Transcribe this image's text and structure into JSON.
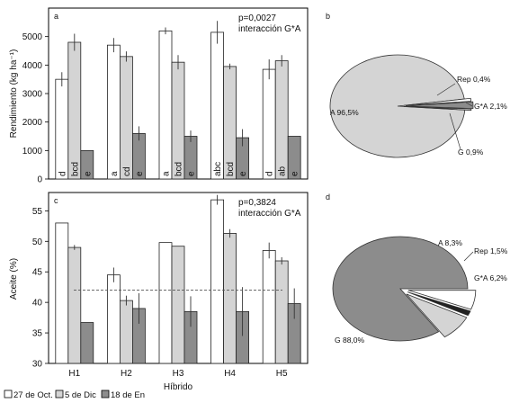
{
  "legend": {
    "items": [
      {
        "label": "27 de Oct.",
        "color": "#ffffff"
      },
      {
        "label": "5 de Dic",
        "color": "#d4d4d4"
      },
      {
        "label": "18 de En",
        "color": "#8c8c8c"
      }
    ]
  },
  "chart_data": [
    {
      "panel": "a",
      "type": "bar",
      "categories": [
        "H1",
        "H2",
        "H3",
        "H4",
        "H5"
      ],
      "ylabel": "Rendimiento (kg ha⁻¹)",
      "ylim": [
        0,
        6000
      ],
      "yticks": [
        0,
        1000,
        2000,
        3000,
        4000,
        5000
      ],
      "grid": false,
      "annotation": [
        "p=0,0027",
        "interacción G*A"
      ],
      "series": [
        {
          "name": "27 de Oct.",
          "values": [
            3500,
            4700,
            5200,
            5150,
            3850
          ],
          "errors": [
            250,
            250,
            120,
            400,
            350
          ],
          "letters": [
            "d",
            "a",
            "a",
            "abc",
            "d"
          ]
        },
        {
          "name": "5 de Dic",
          "values": [
            4800,
            4300,
            4100,
            3950,
            4150
          ],
          "errors": [
            300,
            180,
            250,
            100,
            200
          ],
          "letters": [
            "bcd",
            "cd",
            "bcd",
            "bcd",
            "ab"
          ]
        },
        {
          "name": "18 de En",
          "values": [
            1000,
            1600,
            1500,
            1450,
            1500
          ],
          "errors": [
            0,
            250,
            200,
            300,
            0
          ],
          "letters": [
            "e",
            "e",
            "e",
            "e",
            "e"
          ]
        }
      ]
    },
    {
      "panel": "b",
      "type": "pie",
      "slices": [
        {
          "label": "A 96,5%",
          "value": 96.5,
          "color": "#d4d4d4"
        },
        {
          "label": "Rep 0,4%",
          "value": 0.4,
          "color": "#ffffff"
        },
        {
          "label": "G*A 2,1%",
          "value": 2.1,
          "color": "#8c8c8c"
        },
        {
          "label": "G 0,9%",
          "value": 0.9,
          "color": "#ffffff"
        }
      ]
    },
    {
      "panel": "c",
      "type": "bar",
      "categories": [
        "H1",
        "H2",
        "H3",
        "H4",
        "H5"
      ],
      "xlabel": "Híbrido",
      "ylabel": "Aceite (%)",
      "ylim": [
        30,
        58
      ],
      "yticks": [
        30,
        35,
        40,
        45,
        50,
        55
      ],
      "grid": false,
      "annotation": [
        "p=0,3824",
        "interacción G*A"
      ],
      "reference_line": 42,
      "series": [
        {
          "name": "27 de Oct.",
          "values": [
            53,
            44.5,
            49.8,
            56.8,
            48.5
          ],
          "errors": [
            0,
            1.2,
            0,
            0.8,
            1.3
          ]
        },
        {
          "name": "5 de Dic",
          "values": [
            49,
            40.3,
            49.2,
            51.3,
            46.8
          ],
          "errors": [
            0.4,
            0.8,
            0,
            0.7,
            0.6
          ]
        },
        {
          "name": "18 de En",
          "values": [
            36.7,
            39,
            38.5,
            38.5,
            39.8
          ],
          "errors": [
            0,
            2.5,
            2.5,
            4,
            2.5
          ]
        }
      ]
    },
    {
      "panel": "d",
      "type": "pie",
      "slices": [
        {
          "label": "G 88,0%",
          "value": 88.0,
          "color": "#8c8c8c"
        },
        {
          "label": "A 8,3%",
          "value": 8.3,
          "color": "#d4d4d4"
        },
        {
          "label": "Rep 1,5%",
          "value": 1.5,
          "color": "#222222"
        },
        {
          "label": "G*A 6,2%",
          "value": 6.2,
          "color": "#ffffff"
        }
      ]
    }
  ]
}
